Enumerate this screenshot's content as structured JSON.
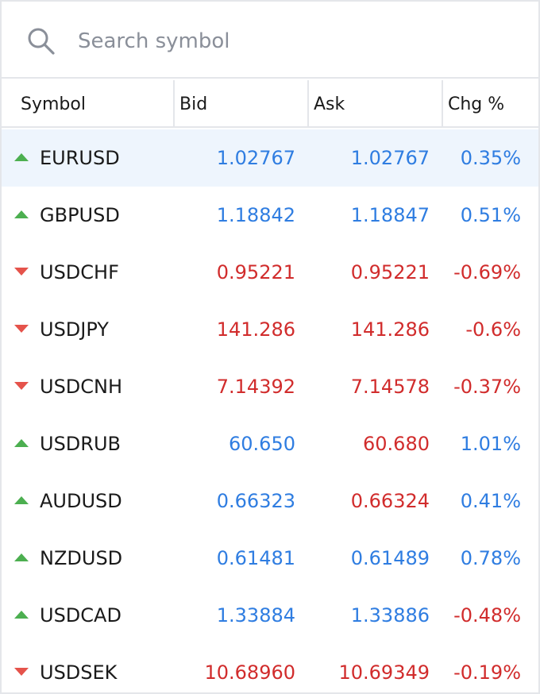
{
  "search": {
    "placeholder": "Search symbol",
    "icon": "search-icon"
  },
  "columns": {
    "symbol": "Symbol",
    "bid": "Bid",
    "ask": "Ask",
    "chg": "Chg %"
  },
  "colors": {
    "up": "#2f7de1",
    "down": "#d12c2c",
    "arrow_up": "#4caf50",
    "arrow_down": "#e5534b",
    "selected_row": "#eef5fd"
  },
  "rows": [
    {
      "symbol": "EURUSD",
      "trend": "up",
      "bid": "1.02767",
      "bid_dir": "up",
      "ask": "1.02767",
      "ask_dir": "up",
      "chg": "0.35%",
      "chg_dir": "up",
      "selected": true
    },
    {
      "symbol": "GBPUSD",
      "trend": "up",
      "bid": "1.18842",
      "bid_dir": "up",
      "ask": "1.18847",
      "ask_dir": "up",
      "chg": "0.51%",
      "chg_dir": "up"
    },
    {
      "symbol": "USDCHF",
      "trend": "down",
      "bid": "0.95221",
      "bid_dir": "down",
      "ask": "0.95221",
      "ask_dir": "down",
      "chg": "-0.69%",
      "chg_dir": "down"
    },
    {
      "symbol": "USDJPY",
      "trend": "down",
      "bid": "141.286",
      "bid_dir": "down",
      "ask": "141.286",
      "ask_dir": "down",
      "chg": "-0.6%",
      "chg_dir": "down"
    },
    {
      "symbol": "USDCNH",
      "trend": "down",
      "bid": "7.14392",
      "bid_dir": "down",
      "ask": "7.14578",
      "ask_dir": "down",
      "chg": "-0.37%",
      "chg_dir": "down"
    },
    {
      "symbol": "USDRUB",
      "trend": "up",
      "bid": "60.650",
      "bid_dir": "up",
      "ask": "60.680",
      "ask_dir": "down",
      "chg": "1.01%",
      "chg_dir": "up"
    },
    {
      "symbol": "AUDUSD",
      "trend": "up",
      "bid": "0.66323",
      "bid_dir": "up",
      "ask": "0.66324",
      "ask_dir": "down",
      "chg": "0.41%",
      "chg_dir": "up"
    },
    {
      "symbol": "NZDUSD",
      "trend": "up",
      "bid": "0.61481",
      "bid_dir": "up",
      "ask": "0.61489",
      "ask_dir": "up",
      "chg": "0.78%",
      "chg_dir": "up"
    },
    {
      "symbol": "USDCAD",
      "trend": "up",
      "bid": "1.33884",
      "bid_dir": "up",
      "ask": "1.33886",
      "ask_dir": "up",
      "chg": "-0.48%",
      "chg_dir": "down"
    },
    {
      "symbol": "USDSEK",
      "trend": "down",
      "bid": "10.68960",
      "bid_dir": "down",
      "ask": "10.69349",
      "ask_dir": "down",
      "chg": "-0.19%",
      "chg_dir": "down"
    }
  ]
}
